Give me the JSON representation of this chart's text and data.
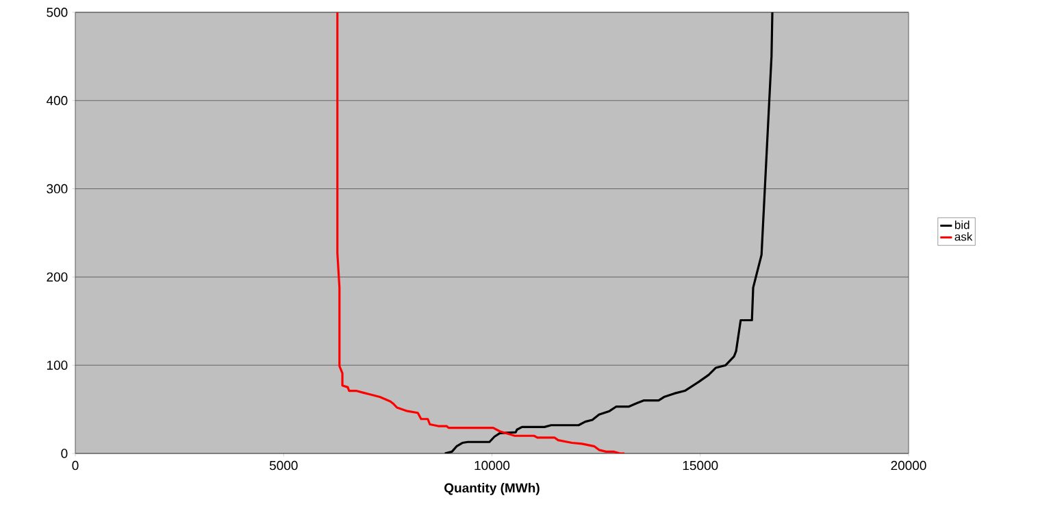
{
  "chart_data": {
    "type": "line",
    "xlabel": "Quantity (MWh)",
    "xlim": [
      0,
      20000
    ],
    "xticks": [
      0,
      5000,
      10000,
      15000,
      20000
    ],
    "ylim": [
      0,
      500
    ],
    "yticks": [
      0,
      100,
      200,
      300,
      400,
      500
    ],
    "grid": "y",
    "legend": "right",
    "marker": "none",
    "line_style": "solid",
    "series": [
      {
        "name": "bid",
        "color": "#000000",
        "x": [
          8870,
          9040,
          9150,
          9290,
          9420,
          9940,
          10060,
          10190,
          10570,
          10600,
          10720,
          11260,
          11420,
          12080,
          12240,
          12410,
          12570,
          12820,
          12980,
          13280,
          13480,
          13640,
          14000,
          14130,
          14380,
          14630,
          14960,
          15200,
          15370,
          15610,
          15810,
          15860,
          15970,
          16240,
          16270,
          16470,
          16710,
          16730
        ],
        "values": [
          0,
          2,
          8,
          12,
          13,
          13,
          19,
          23,
          24,
          27,
          30,
          30,
          32,
          32,
          36,
          38,
          44,
          48,
          53,
          53,
          57,
          60,
          60,
          64,
          68,
          71,
          81,
          89,
          97,
          100,
          110,
          116,
          151,
          151,
          188,
          225,
          450,
          500
        ]
      },
      {
        "name": "ask",
        "color": "#ff0000",
        "x": [
          6290,
          6290,
          6340,
          6340,
          6410,
          6410,
          6540,
          6570,
          6740,
          6900,
          7070,
          7310,
          7560,
          7640,
          7720,
          7970,
          8220,
          8300,
          8460,
          8510,
          8710,
          8910,
          8960,
          10030,
          10190,
          10550,
          11010,
          11090,
          11500,
          11590,
          11920,
          12160,
          12460,
          12570,
          12740,
          12930,
          13070,
          13180
        ],
        "values": [
          500,
          227,
          188,
          99,
          91,
          77,
          75,
          71,
          71,
          69,
          67,
          64,
          59,
          56,
          52,
          48,
          46,
          39,
          39,
          33,
          31,
          31,
          29,
          29,
          25,
          20,
          20,
          18,
          18,
          15,
          12,
          11,
          8,
          4,
          2,
          2,
          0,
          0
        ]
      }
    ]
  }
}
